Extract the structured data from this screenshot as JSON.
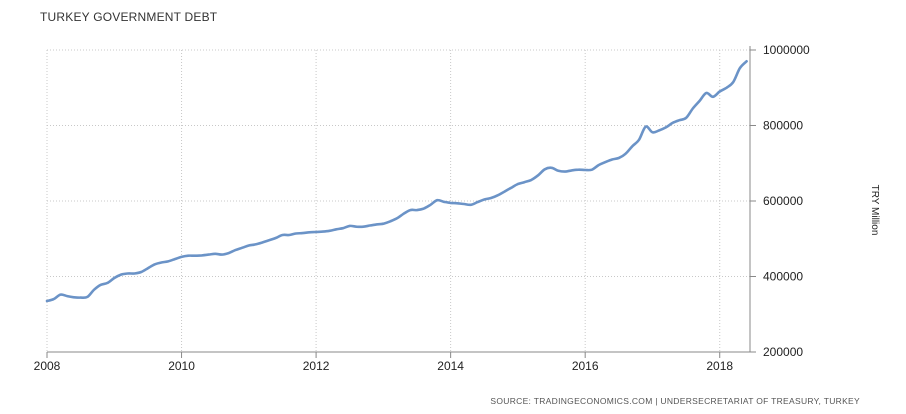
{
  "chart_data": {
    "type": "line",
    "title": "TURKEY GOVERNMENT DEBT",
    "ylabel": "TRY Million",
    "xlabel": "",
    "source": "SOURCE: TRADINGECONOMICS.COM | UNDERSECRETARIAT OF TREASURY, TURKEY",
    "xlim": [
      2008,
      2018.4
    ],
    "ylim": [
      200000,
      1000000
    ],
    "x_ticks": [
      "2008",
      "2010",
      "2012",
      "2014",
      "2016",
      "2018"
    ],
    "y_ticks": [
      "200000",
      "400000",
      "600000",
      "800000",
      "1000000"
    ],
    "grid": "dotted",
    "y_axis_position": "right",
    "line_color": "#6b93c7",
    "series": [
      {
        "x": [
          2008.0,
          2008.1,
          2008.2,
          2008.3,
          2008.4,
          2008.5,
          2008.6,
          2008.7,
          2008.8,
          2008.9,
          2009.0,
          2009.1,
          2009.2,
          2009.3,
          2009.4,
          2009.5,
          2009.6,
          2009.7,
          2009.8,
          2009.9,
          2010.0,
          2010.1,
          2010.2,
          2010.3,
          2010.4,
          2010.5,
          2010.6,
          2010.7,
          2010.8,
          2010.9,
          2011.0,
          2011.1,
          2011.2,
          2011.3,
          2011.4,
          2011.5,
          2011.6,
          2011.7,
          2011.8,
          2011.9,
          2012.0,
          2012.1,
          2012.2,
          2012.3,
          2012.4,
          2012.5,
          2012.6,
          2012.7,
          2012.8,
          2012.9,
          2013.0,
          2013.1,
          2013.2,
          2013.3,
          2013.4,
          2013.5,
          2013.6,
          2013.7,
          2013.8,
          2013.9,
          2014.0,
          2014.1,
          2014.2,
          2014.3,
          2014.4,
          2014.5,
          2014.6,
          2014.7,
          2014.8,
          2014.9,
          2015.0,
          2015.1,
          2015.2,
          2015.3,
          2015.4,
          2015.5,
          2015.6,
          2015.7,
          2015.8,
          2015.9,
          2016.0,
          2016.1,
          2016.2,
          2016.3,
          2016.4,
          2016.5,
          2016.6,
          2016.7,
          2016.8,
          2016.9,
          2017.0,
          2017.1,
          2017.2,
          2017.3,
          2017.4,
          2017.5,
          2017.6,
          2017.7,
          2017.8,
          2017.9,
          2018.0,
          2018.1,
          2018.2,
          2018.3,
          2018.4
        ],
        "values": [
          335000,
          340000,
          352000,
          348000,
          345000,
          344000,
          346000,
          365000,
          378000,
          383000,
          396000,
          405000,
          408000,
          408000,
          412000,
          422000,
          432000,
          437000,
          440000,
          446000,
          452000,
          455000,
          455000,
          456000,
          458000,
          460000,
          458000,
          462000,
          470000,
          476000,
          482000,
          485000,
          490000,
          496000,
          502000,
          510000,
          510000,
          514000,
          515000,
          517000,
          518000,
          519000,
          521000,
          525000,
          528000,
          534000,
          532000,
          532000,
          535000,
          538000,
          540000,
          546000,
          554000,
          566000,
          576000,
          576000,
          580000,
          590000,
          602000,
          598000,
          595000,
          594000,
          592000,
          590000,
          597000,
          604000,
          608000,
          615000,
          625000,
          635000,
          645000,
          650000,
          656000,
          668000,
          684000,
          688000,
          680000,
          678000,
          681000,
          683000,
          682000,
          683000,
          695000,
          703000,
          710000,
          714000,
          725000,
          745000,
          762000,
          797000,
          782000,
          787000,
          795000,
          807000,
          814000,
          820000,
          845000,
          865000,
          886000,
          876000,
          890000,
          900000,
          915000,
          952000,
          970000
        ]
      }
    ]
  }
}
